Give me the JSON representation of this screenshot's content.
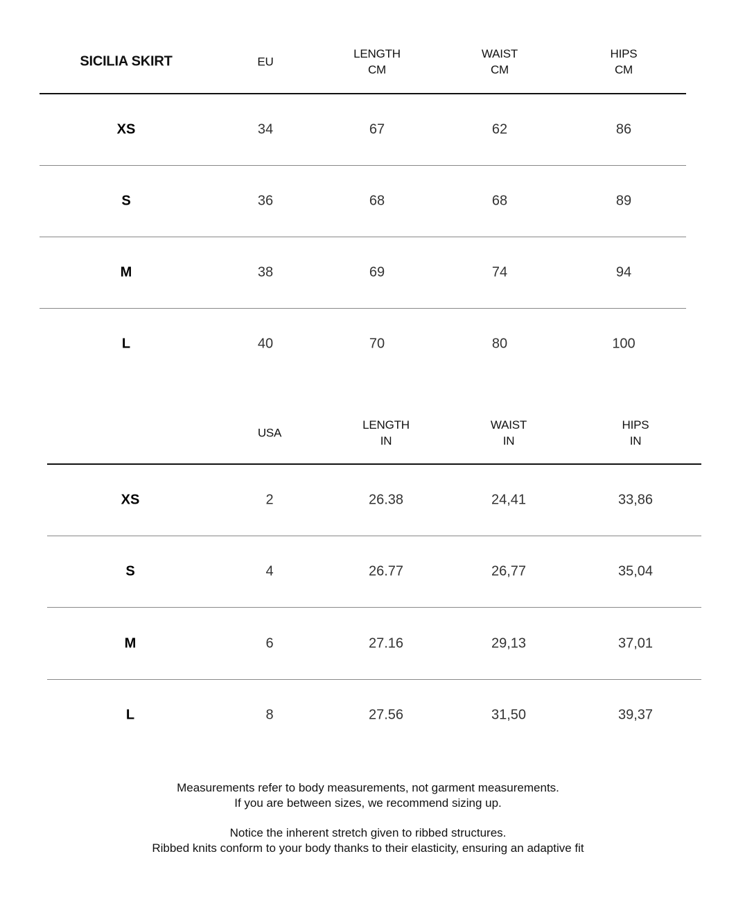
{
  "tables": [
    {
      "headers": [
        [
          "SICILIA SKIRT"
        ],
        [
          "EU"
        ],
        [
          "LENGTH",
          "CM"
        ],
        [
          "WAIST",
          "CM"
        ],
        [
          "HIPS",
          "CM"
        ]
      ],
      "rows": [
        [
          "XS",
          "34",
          "67",
          "62",
          "86"
        ],
        [
          "S",
          "36",
          "68",
          "68",
          "89"
        ],
        [
          "M",
          "38",
          "69",
          "74",
          "94"
        ],
        [
          "L",
          "40",
          "70",
          "80",
          "100"
        ]
      ]
    },
    {
      "headers": [
        [
          ""
        ],
        [
          "USA"
        ],
        [
          "LENGTH",
          "IN"
        ],
        [
          "WAIST",
          "IN"
        ],
        [
          "HIPS",
          "IN"
        ]
      ],
      "rows": [
        [
          "XS",
          "2",
          "26.38",
          "24,41",
          "33,86"
        ],
        [
          "S",
          "4",
          "26.77",
          "26,77",
          "35,04"
        ],
        [
          "M",
          "6",
          "27.16",
          "29,13",
          "37,01"
        ],
        [
          "L",
          "8",
          "27.56",
          "31,50",
          "39,37"
        ]
      ]
    }
  ],
  "notes": [
    "Measurements refer to body measurements, not garment measurements.",
    "If you are between sizes, we recommend sizing up.",
    "Notice the inherent stretch given to ribbed structures.",
    "Ribbed knits conform to your body thanks to their elasticity, ensuring an adaptive fit"
  ]
}
